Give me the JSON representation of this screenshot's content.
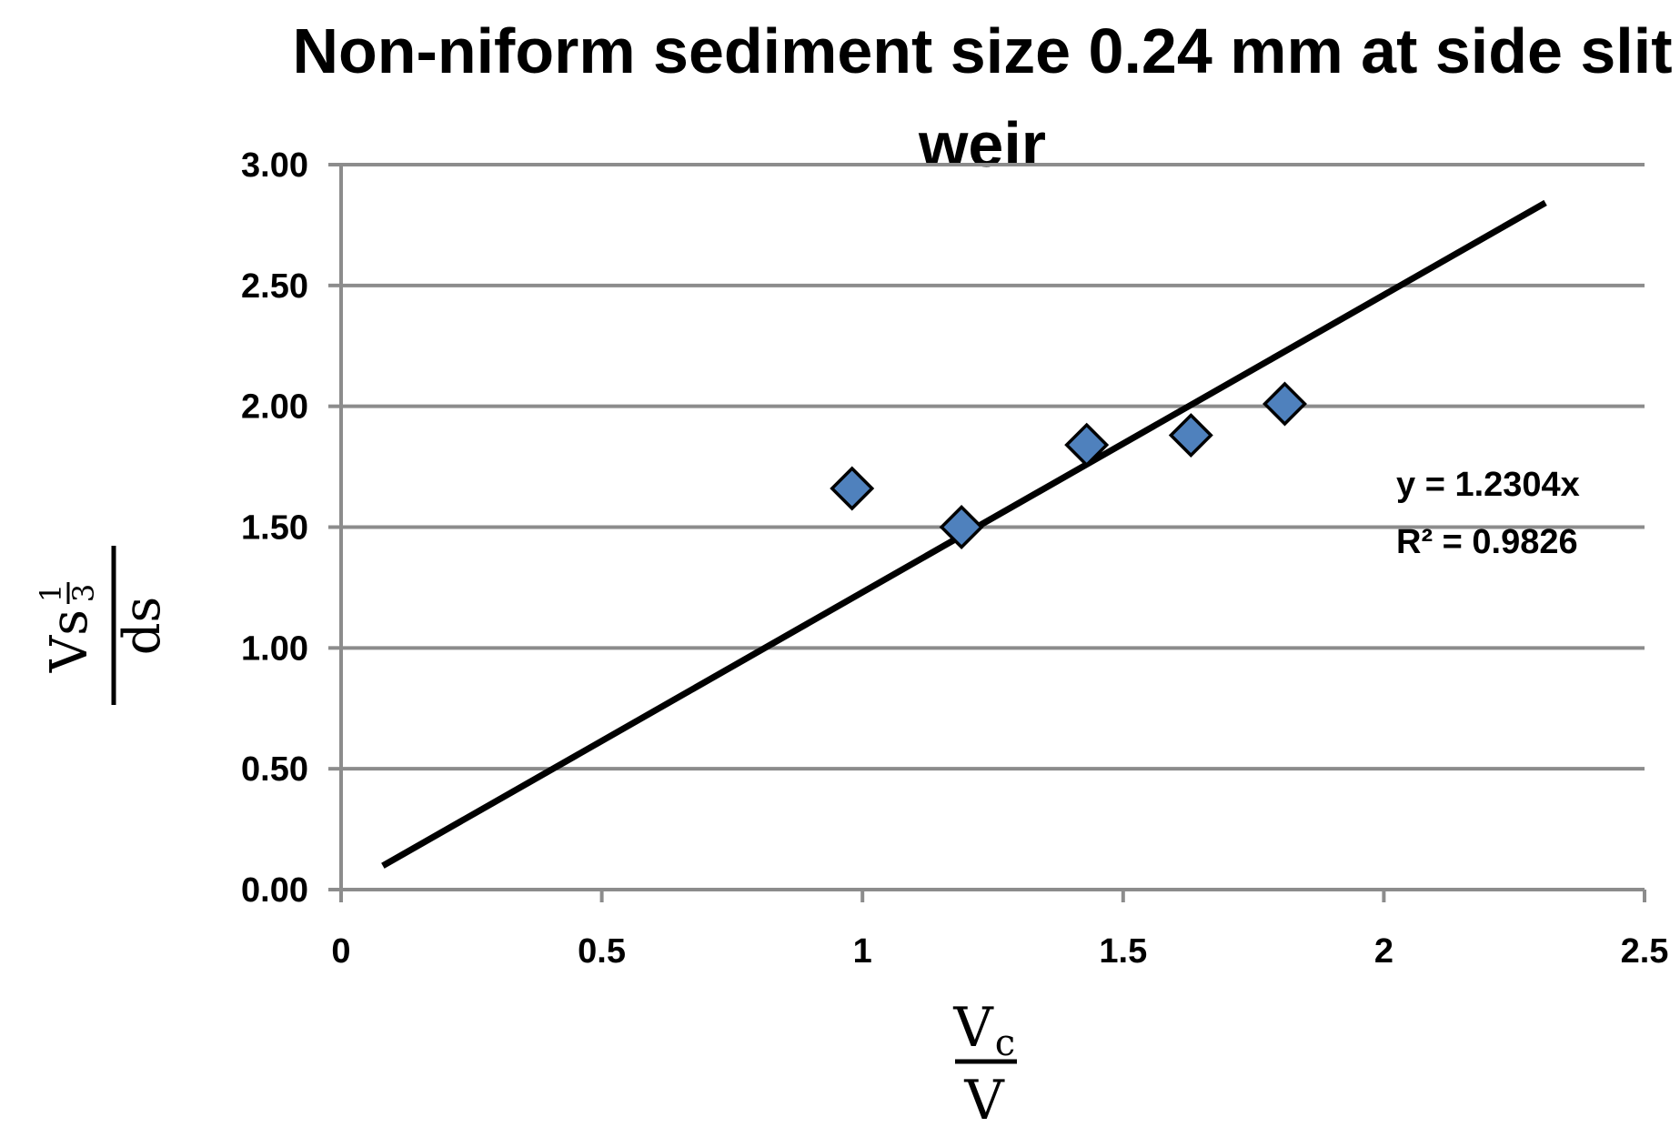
{
  "chart_data": {
    "type": "scatter",
    "title": "Non-niform sediment size 0.24 mm at side slit weir",
    "xlabel": {
      "numerator": "V",
      "numerator_sub": "c",
      "denominator": "V"
    },
    "ylabel": {
      "numerator": "Vs",
      "exponent_num": "1",
      "exponent_den": "3",
      "denominator": "ds"
    },
    "xlim": [
      0,
      2.5
    ],
    "ylim": [
      0,
      3.0
    ],
    "x_ticks": [
      "0",
      "0.5",
      "1",
      "1.5",
      "2",
      "2.5"
    ],
    "y_ticks": [
      "0.00",
      "0.50",
      "1.00",
      "1.50",
      "2.00",
      "2.50",
      "3.00"
    ],
    "grid": "horizontal",
    "series": [
      {
        "marker": "diamond",
        "color": "#4f81bd",
        "points": [
          {
            "x": 0.98,
            "y": 1.66
          },
          {
            "x": 1.19,
            "y": 1.5
          },
          {
            "x": 1.43,
            "y": 1.84
          },
          {
            "x": 1.63,
            "y": 1.88
          },
          {
            "x": 1.81,
            "y": 2.01
          }
        ]
      }
    ],
    "trendline": {
      "slope": 1.2304,
      "x_start": 0.08,
      "x_end": 2.31,
      "equation": "y = 1.2304x",
      "r2_label": "R² = 0.9826"
    }
  }
}
